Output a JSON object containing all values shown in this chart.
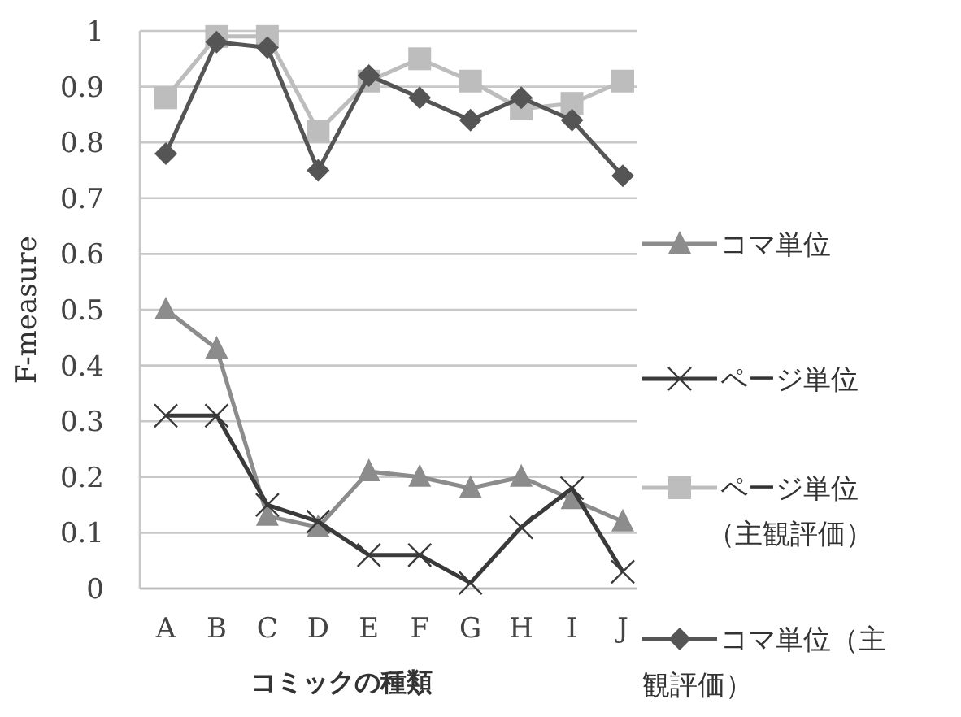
{
  "chart_data": {
    "type": "line",
    "xlabel": "コミックの種類",
    "ylabel": "F-measure",
    "categories": [
      "A",
      "B",
      "C",
      "D",
      "E",
      "F",
      "G",
      "H",
      "I",
      "J"
    ],
    "ylim": [
      0,
      1
    ],
    "yticks": [
      0,
      0.1,
      0.2,
      0.3,
      0.4,
      0.5,
      0.6,
      0.7,
      0.8,
      0.9,
      1
    ],
    "grid": "y",
    "legend": "right",
    "line_style": "solid",
    "series": [
      {
        "name": "コマ単位",
        "color": "#8c8c8c",
        "marker": "triangle",
        "values": [
          0.5,
          0.43,
          0.13,
          0.11,
          0.21,
          0.2,
          0.18,
          0.2,
          0.16,
          0.12
        ]
      },
      {
        "name": "ページ単位",
        "color": "#3a3a3a",
        "marker": "cross",
        "values": [
          0.31,
          0.31,
          0.15,
          0.12,
          0.06,
          0.06,
          0.01,
          0.11,
          0.18,
          0.03
        ]
      },
      {
        "name": "ページ単位（主観評価）",
        "color": "#bdbdbd",
        "marker": "square",
        "values": [
          0.88,
          0.99,
          0.99,
          0.82,
          0.91,
          0.95,
          0.91,
          0.86,
          0.87,
          0.91
        ]
      },
      {
        "name": "コマ単位（主観評価）",
        "color": "#555555",
        "marker": "diamond",
        "values": [
          0.78,
          0.98,
          0.97,
          0.75,
          0.92,
          0.88,
          0.84,
          0.88,
          0.84,
          0.74
        ]
      }
    ]
  }
}
